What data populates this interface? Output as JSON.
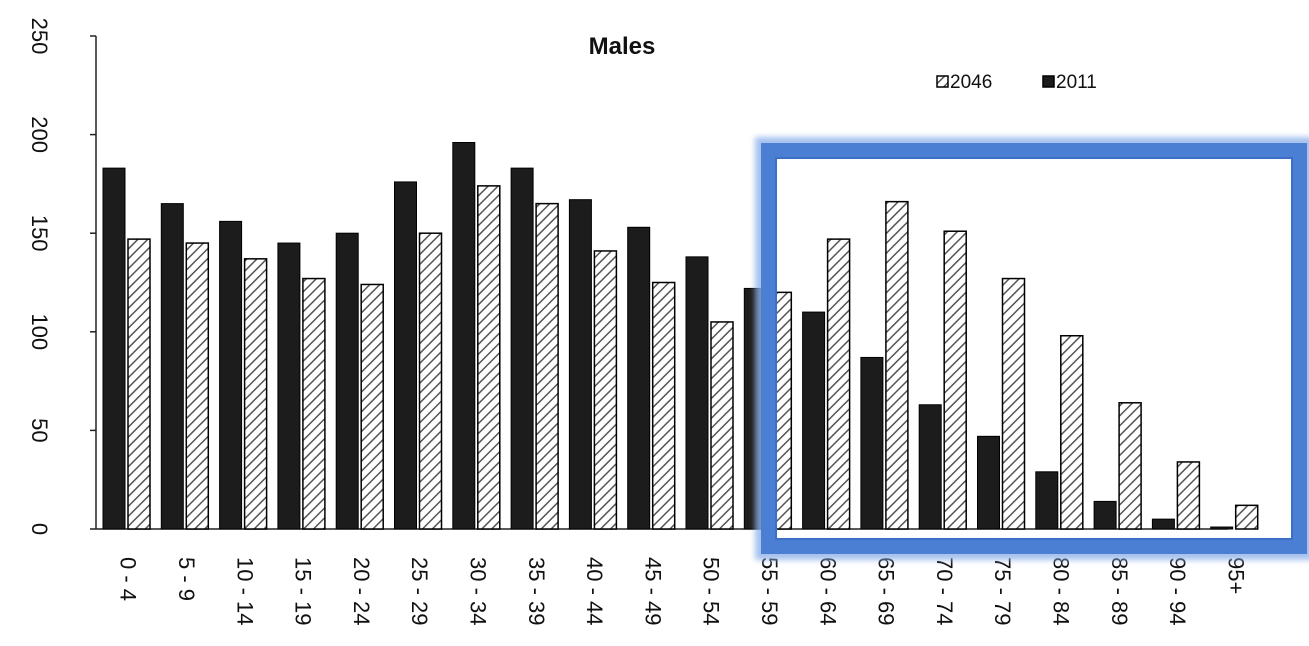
{
  "chart_data": {
    "type": "bar",
    "title": "Males",
    "categories": [
      "0 - 4",
      "5 - 9",
      "10 - 14",
      "15 - 19",
      "20 - 24",
      "25 - 29",
      "30 - 34",
      "35 - 39",
      "40 - 44",
      "45 - 49",
      "50 - 54",
      "55 - 59",
      "60 - 64",
      "65 - 69",
      "70 - 74",
      "75 - 79",
      "80 - 84",
      "85 - 89",
      "90 - 94",
      "95+"
    ],
    "series": [
      {
        "name": "2011",
        "color": "#1c1c1c",
        "pattern": "solid",
        "values": [
          183,
          165,
          156,
          145,
          150,
          176,
          196,
          183,
          167,
          153,
          138,
          122,
          110,
          87,
          63,
          47,
          29,
          14,
          5,
          1
        ]
      },
      {
        "name": "2046",
        "color": "#ffffff",
        "pattern": "diagonal-hatch",
        "values": [
          147,
          145,
          137,
          127,
          124,
          150,
          174,
          165,
          141,
          125,
          105,
          120,
          147,
          166,
          151,
          127,
          98,
          64,
          34,
          12
        ]
      }
    ],
    "ylim": [
      0,
      250
    ],
    "yticks": [
      0,
      50,
      100,
      150,
      200,
      250
    ],
    "xlabel": "",
    "ylabel": "",
    "legend": {
      "placement": "top-right",
      "order": [
        "2046",
        "2011"
      ]
    },
    "grid": false,
    "highlight": {
      "shape": "rectangle",
      "color": "#4a7fd4",
      "categories": [
        "55 - 59",
        "95+"
      ]
    }
  }
}
